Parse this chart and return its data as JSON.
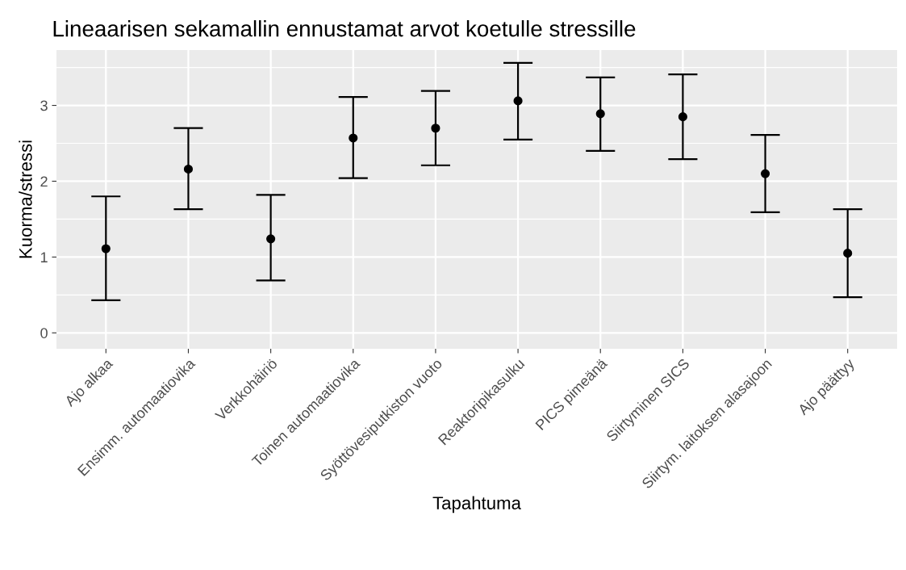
{
  "chart_data": {
    "type": "scatter",
    "title": "Lineaarisen sekamallin ennustamat arvot koetulle stressille",
    "xlabel": "Tapahtuma",
    "ylabel": "Kuorma/stressi",
    "categories": [
      "Ajo alkaa",
      "Ensimm. automaatiovika",
      "Verkkohäiriö",
      "Toinen automaatiovika",
      "Syöttövesiputkiston vuoto",
      "Reaktoripikasulku",
      "PICS pimeänä",
      "Siirtyminen SICS",
      "Siirtym. laitoksen alasajoon",
      "Ajo päättyy"
    ],
    "series": [
      {
        "color": "#000000",
        "values": [
          1.11,
          2.16,
          1.24,
          2.57,
          2.7,
          3.06,
          2.89,
          2.85,
          2.1,
          1.05
        ],
        "errors": [
          [
            0.43,
            1.8
          ],
          [
            1.63,
            2.7
          ],
          [
            0.69,
            1.82
          ],
          [
            2.04,
            3.11
          ],
          [
            2.21,
            3.19
          ],
          [
            2.55,
            3.56
          ],
          [
            2.4,
            3.37
          ],
          [
            2.29,
            3.41
          ],
          [
            1.59,
            2.61
          ],
          [
            0.47,
            1.63
          ]
        ]
      }
    ],
    "ylim": [
      -0.21,
      3.73
    ],
    "yticks": [
      0,
      1,
      2,
      3
    ],
    "grid": true,
    "marker": "circle"
  }
}
